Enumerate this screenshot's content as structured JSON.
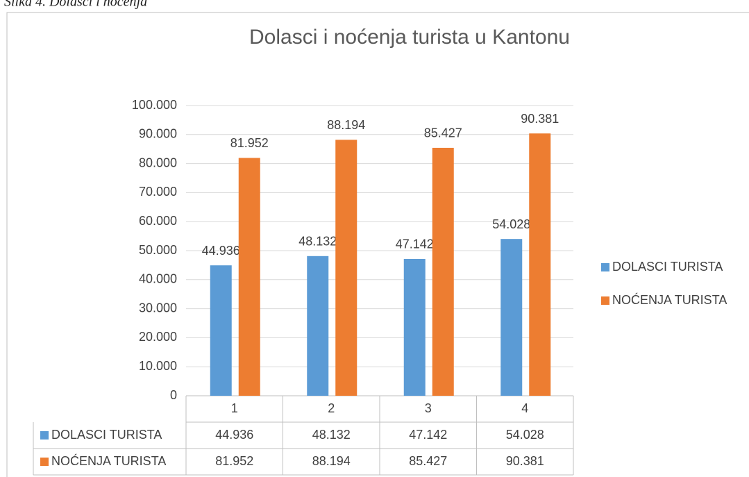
{
  "caption": "Slika 4. Dolasci i noćenja",
  "chart_data": {
    "type": "bar",
    "title": "Dolasci i noćenja turista u Kantonu",
    "categories": [
      "1",
      "2",
      "3",
      "4"
    ],
    "series": [
      {
        "name": "DOLASCI TURISTA",
        "color": "#5b9bd5",
        "values": [
          44936,
          48132,
          47142,
          54028
        ],
        "value_labels": [
          "44.936",
          "48.132",
          "47.142",
          "54.028"
        ]
      },
      {
        "name": "NOĆENJA TURISTA",
        "color": "#ed7d31",
        "values": [
          81952,
          88194,
          85427,
          90381
        ],
        "value_labels": [
          "81.952",
          "88.194",
          "85.427",
          "90.381"
        ]
      }
    ],
    "ylim": [
      0,
      100000
    ],
    "yticks": [
      0,
      {
        "value": 10000,
        "label": "10.000"
      },
      {
        "value": 20000,
        "label": "20.000"
      },
      {
        "value": 30000,
        "label": "30.000"
      },
      {
        "value": 40000,
        "label": "40.000"
      },
      {
        "value": 50000,
        "label": "50.000"
      },
      {
        "value": 60000,
        "label": "60.000"
      },
      {
        "value": 70000,
        "label": "70.000"
      },
      {
        "value": 80000,
        "label": "80.000"
      },
      {
        "value": 90000,
        "label": "90.000"
      },
      {
        "value": 100000,
        "label": "100.000"
      }
    ],
    "grid": true,
    "legend": "right",
    "data_table": true
  }
}
